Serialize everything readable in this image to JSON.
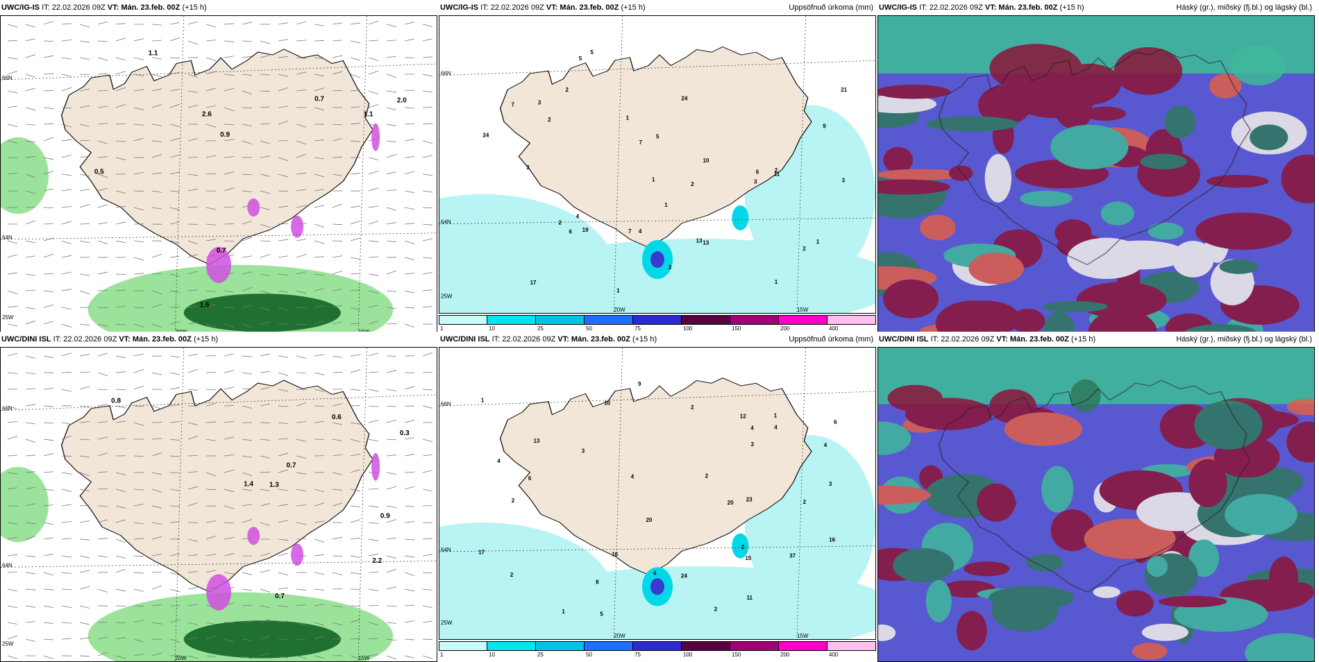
{
  "rows": [
    {
      "model": "UWC/IG-IS",
      "it": "IT: 22.02.2026 09Z",
      "vt": "VT: Mán. 23.feb. 00Z",
      "lead": "(+15 h)",
      "lat_labels": [
        "66N",
        "64N",
        "25W"
      ],
      "lon_labels": [
        "20W",
        "15W"
      ],
      "wind_values": [
        "0.5",
        "1.1",
        "0.9",
        "0.7",
        "0.7",
        "2.0",
        "2.6",
        "1.1",
        "1.5"
      ],
      "precip_values": [
        "2",
        "7",
        "7",
        "5",
        "19",
        "24",
        "24",
        "2",
        "2",
        "3",
        "5",
        "6",
        "1",
        "2",
        "1",
        "3",
        "1",
        "1",
        "2",
        "4",
        "3",
        "6",
        "2",
        "1",
        "9",
        "17",
        "21",
        "13",
        "5",
        "3",
        "10",
        "13",
        "3",
        "4",
        "11",
        "7",
        "1"
      ]
    },
    {
      "model": "UWC/DINI ISL",
      "it": "IT: 22.02.2026 09Z",
      "vt": "VT: Mán. 23.feb. 00Z",
      "lead": "(+15 h)",
      "lat_labels": [
        "66N",
        "64N",
        "25W"
      ],
      "lon_labels": [
        "20W",
        "15W"
      ],
      "wind_values": [
        "0.7",
        "0.7",
        "0.6",
        "1.3",
        "0.9",
        "1.4",
        "2.2",
        "0.3",
        "0.8"
      ],
      "precip_values": [
        "12",
        "9",
        "4",
        "13",
        "23",
        "6",
        "4",
        "20",
        "2",
        "1",
        "2",
        "2",
        "2",
        "2",
        "3",
        "4",
        "1",
        "2",
        "1",
        "2",
        "5",
        "16",
        "3",
        "10",
        "24",
        "37",
        "20",
        "16",
        "11",
        "17",
        "15",
        "4",
        "8",
        "6",
        "4",
        "3",
        "4"
      ]
    }
  ],
  "precip_title": "Uppsöfnuð úrkoma (mm)",
  "cloud_title": "Háský (gr.), miðský (fj.bl.) og lágský (bl.)",
  "colorbar": {
    "ticks": [
      "1",
      "10",
      "25",
      "50",
      "75",
      "100",
      "150",
      "200",
      "400"
    ],
    "colors": [
      "#c8fafa",
      "#00e5ee",
      "#00c4e6",
      "#1e6fff",
      "#2a2ad0",
      "#5a0040",
      "#a00078",
      "#ff00c8",
      "#ffc0f0"
    ]
  },
  "colors": {
    "land": "#f2e6d8",
    "wind_green": "#9be39b",
    "wind_dark": "#0b5d1e",
    "magenta": "#d050e0",
    "precip_light": "#b8f4f4",
    "precip_mid": "#00d8e8",
    "cloud_green": "#3fb99a",
    "cloud_red": "#8b1538",
    "cloud_blue": "#5858d0",
    "cloud_white": "#f4f0ea"
  }
}
